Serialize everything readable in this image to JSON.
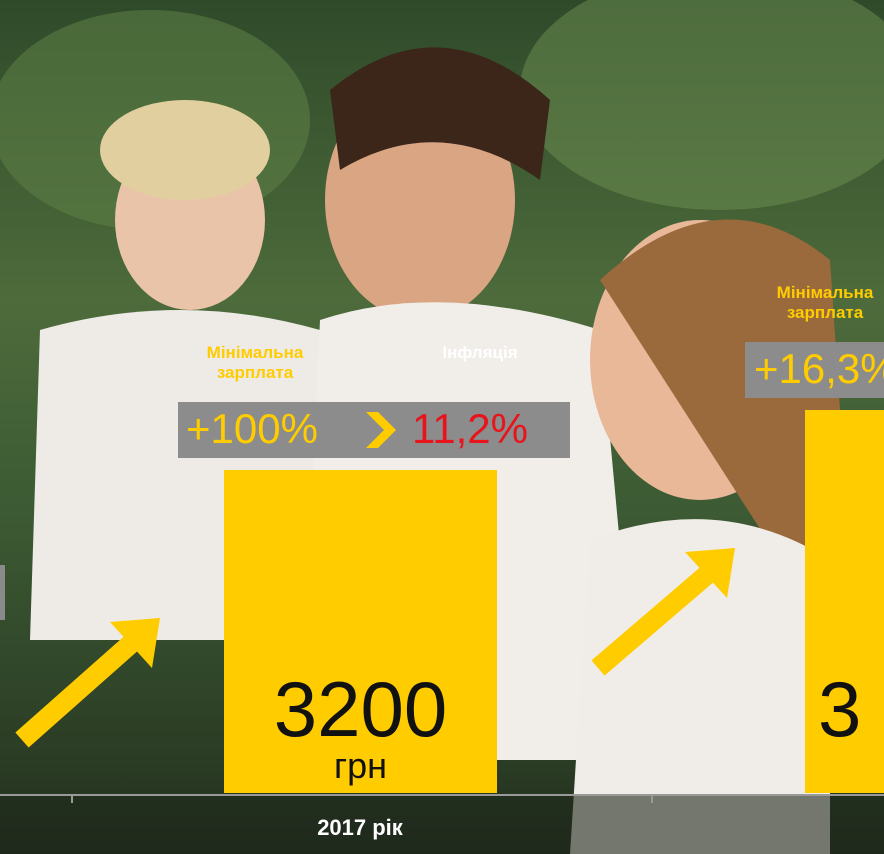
{
  "left": {
    "wage_label": "Мінімальна зарплата",
    "inflation_label": "Інфляція",
    "wage_change": "+100%",
    "inflation_value": "11,2%",
    "amount": "3200",
    "currency": "грн",
    "year": "2017 рік"
  },
  "right": {
    "wage_label": "Мінімальна зарплата",
    "wage_change": "+16,3%",
    "amount": "3"
  }
}
